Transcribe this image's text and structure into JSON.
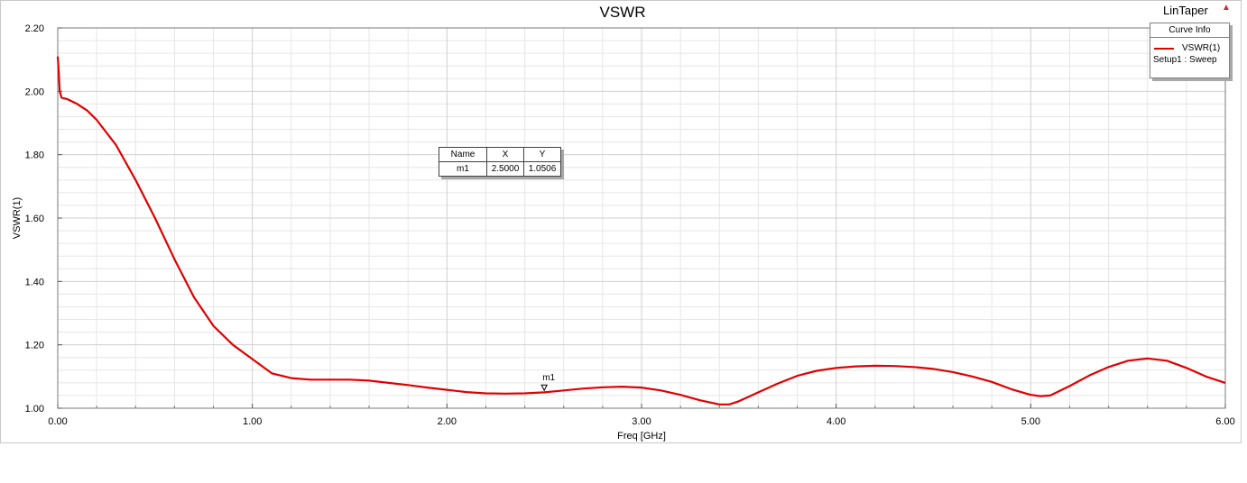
{
  "report": {
    "name": "LinTaper"
  },
  "legend": {
    "header": "Curve Info",
    "curve_name": "VSWR(1)",
    "curve_source": "Setup1 : Sweep"
  },
  "marker_table": {
    "headers": [
      "Name",
      "X",
      "Y"
    ],
    "rows": [
      [
        "m1",
        "2.5000",
        "1.0506"
      ]
    ]
  },
  "marker": {
    "label": "m1",
    "x": 2.5,
    "y": 1.0506
  },
  "colors": {
    "curve": "#e00000",
    "grid_major": "#cfcfcf",
    "grid_minor": "#e6e6e6"
  },
  "chart_data": {
    "type": "line",
    "title": "VSWR",
    "xlabel": "Freq [GHz]",
    "ylabel": "VSWR(1)",
    "xlim": [
      0,
      6
    ],
    "ylim": [
      1.0,
      2.2
    ],
    "x_ticks": [
      "0.00",
      "1.00",
      "2.00",
      "3.00",
      "4.00",
      "5.00",
      "6.00"
    ],
    "y_ticks": [
      "1.00",
      "1.20",
      "1.40",
      "1.60",
      "1.80",
      "2.00",
      "2.20"
    ],
    "grid": true,
    "legend_position": "top-right",
    "series": [
      {
        "name": "VSWR(1)",
        "x": [
          0,
          0.005,
          0.01,
          0.02,
          0.05,
          0.1,
          0.15,
          0.2,
          0.3,
          0.4,
          0.5,
          0.6,
          0.7,
          0.8,
          0.9,
          1.0,
          1.1,
          1.2,
          1.3,
          1.4,
          1.5,
          1.6,
          1.7,
          1.8,
          1.9,
          2.0,
          2.1,
          2.2,
          2.3,
          2.4,
          2.5,
          2.6,
          2.7,
          2.8,
          2.9,
          3.0,
          3.1,
          3.2,
          3.3,
          3.4,
          3.45,
          3.5,
          3.6,
          3.7,
          3.8,
          3.9,
          4.0,
          4.1,
          4.2,
          4.3,
          4.4,
          4.5,
          4.6,
          4.7,
          4.8,
          4.9,
          5.0,
          5.05,
          5.1,
          5.2,
          5.3,
          5.4,
          5.5,
          5.6,
          5.7,
          5.8,
          5.9,
          6.0
        ],
        "y": [
          2.11,
          2.06,
          2.0,
          1.98,
          1.975,
          1.96,
          1.94,
          1.91,
          1.83,
          1.72,
          1.6,
          1.47,
          1.35,
          1.26,
          1.2,
          1.155,
          1.11,
          1.095,
          1.09,
          1.09,
          1.09,
          1.087,
          1.08,
          1.073,
          1.065,
          1.058,
          1.051,
          1.047,
          1.046,
          1.047,
          1.05,
          1.056,
          1.062,
          1.066,
          1.068,
          1.065,
          1.056,
          1.042,
          1.025,
          1.012,
          1.012,
          1.022,
          1.05,
          1.078,
          1.102,
          1.118,
          1.127,
          1.132,
          1.134,
          1.133,
          1.13,
          1.124,
          1.114,
          1.1,
          1.083,
          1.06,
          1.042,
          1.038,
          1.04,
          1.07,
          1.103,
          1.13,
          1.15,
          1.157,
          1.15,
          1.127,
          1.1,
          1.08
        ]
      }
    ]
  }
}
